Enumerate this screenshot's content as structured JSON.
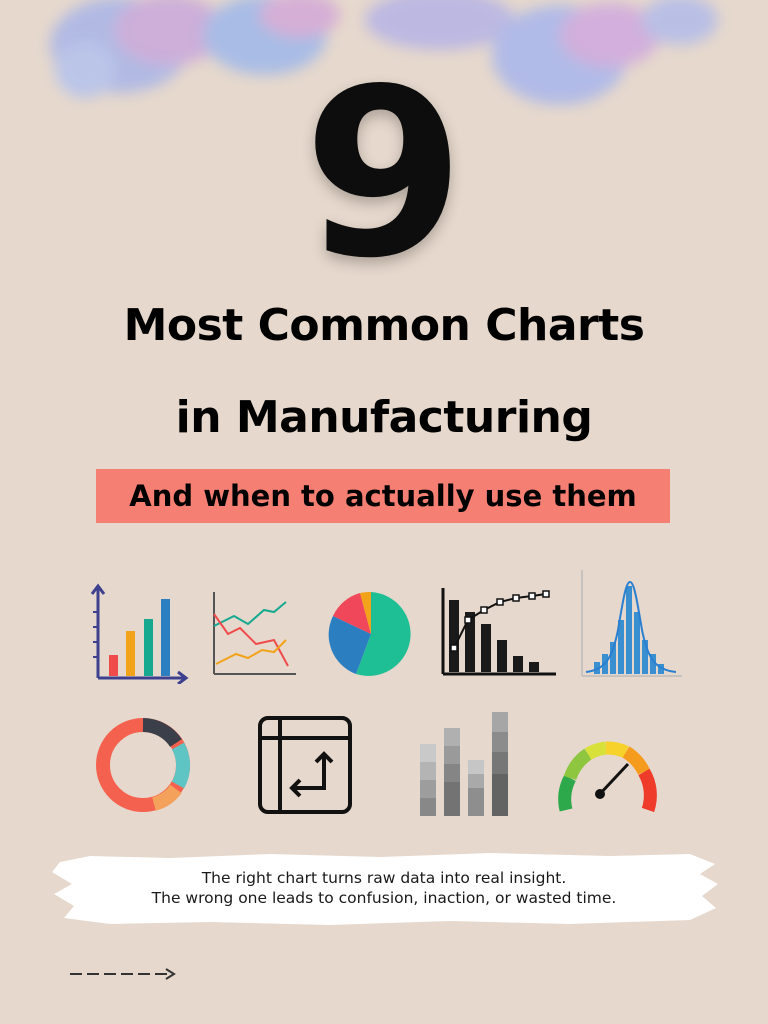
{
  "headline": {
    "number": "9",
    "line1": "Most Common Charts",
    "line2": "in Manufacturing"
  },
  "subtitle": "And when to actually use them",
  "icons": [
    "bar-chart-icon",
    "line-chart-icon",
    "pie-chart-icon",
    "pareto-chart-icon",
    "histogram-icon",
    "donut-chart-icon",
    "swap-table-icon",
    "stacked-bar-icon",
    "gauge-icon"
  ],
  "caption": {
    "line1": "The right chart turns raw data into real insight.",
    "line2": "The wrong one leads to confusion, inaction, or wasted time."
  },
  "colors": {
    "background": "#e6d8cc",
    "highlight": "#f47f72",
    "text": "#000000"
  }
}
